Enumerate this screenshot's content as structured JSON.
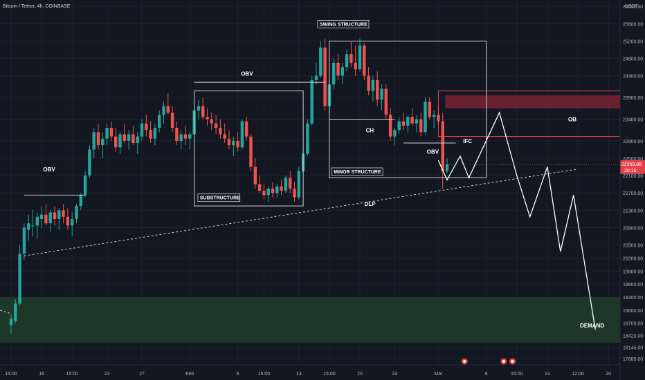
{
  "symbol_title": "Bitcoin / Tether, 4h, COINBASE",
  "currency": "USDT",
  "price_label": {
    "price": "22359.86",
    "countdown": "20:16",
    "bg": "#e8404a"
  },
  "colors": {
    "background": "#131722",
    "up": "#26a69a",
    "down": "#ef5350",
    "grid": "#1e222d",
    "text": "#b2b5be",
    "annotation": "#ffffff",
    "demand_zone": "#1f3b2a",
    "ob_zone": "#7a2232",
    "ob_border": "#e8404a"
  },
  "chart_data": {
    "type": "candlestick",
    "interval": "4h",
    "ylim": [
      17740,
      26050
    ],
    "y_ticks": [
      26000,
      25600,
      25200,
      24800,
      24400,
      23900,
      23400,
      22900,
      22500,
      22100,
      21700,
      21300,
      20900,
      20500,
      20200,
      19900,
      19600,
      19300,
      19000,
      18700,
      18420,
      18145,
      17885
    ],
    "y_tick_labels": [
      "26000.00",
      "25600.00",
      "25200.00",
      "24800.00",
      "24400.00",
      "23900.00",
      "23400.00",
      "22900.00",
      "22500.00",
      "22100.00",
      "21700.00",
      "21300.00",
      "20900.00",
      "20500.00",
      "20200.00",
      "19900.00",
      "19600.00",
      "19300.00",
      "19000.00",
      "18700.00",
      "18420.00",
      "18145.00",
      "17885.00"
    ],
    "x_ticks": [
      {
        "label": "15:00",
        "bar": 0
      },
      {
        "label": "16",
        "bar": 7
      },
      {
        "label": "15:00",
        "bar": 14
      },
      {
        "label": "23",
        "bar": 22
      },
      {
        "label": "27",
        "bar": 30
      },
      {
        "label": "Feb",
        "bar": 41
      },
      {
        "label": "6",
        "bar": 52
      },
      {
        "label": "15:00",
        "bar": 58
      },
      {
        "label": "13",
        "bar": 66
      },
      {
        "label": "15:00",
        "bar": 73
      },
      {
        "label": "20",
        "bar": 80
      },
      {
        "label": "24",
        "bar": 88
      },
      {
        "label": "Mar",
        "bar": 98
      },
      {
        "label": "6",
        "bar": 109
      },
      {
        "label": "15:00",
        "bar": 116
      },
      {
        "label": "13",
        "bar": 123
      },
      {
        "label": "12:00",
        "bar": 130
      },
      {
        "label": "20",
        "bar": 137
      }
    ],
    "candles": [
      [
        18650,
        18900,
        18450,
        18800
      ],
      [
        18750,
        19250,
        18700,
        19150
      ],
      [
        19150,
        20500,
        19100,
        20300
      ],
      [
        20300,
        21000,
        20150,
        20900
      ],
      [
        20850,
        21200,
        20600,
        21000
      ],
      [
        20950,
        21300,
        20700,
        20950
      ],
      [
        20950,
        21250,
        20650,
        21150
      ],
      [
        21100,
        21400,
        20900,
        21200
      ],
      [
        21200,
        21450,
        20950,
        21000
      ],
      [
        21000,
        21300,
        20800,
        21250
      ],
      [
        21250,
        21400,
        20950,
        21100
      ],
      [
        21100,
        21350,
        20850,
        21300
      ],
      [
        21300,
        21450,
        21000,
        21150
      ],
      [
        21150,
        21350,
        20850,
        20950
      ],
      [
        20950,
        21250,
        20700,
        21100
      ],
      [
        21100,
        21450,
        21000,
        21400
      ],
      [
        21400,
        21700,
        21300,
        21650
      ],
      [
        21650,
        22200,
        21600,
        22100
      ],
      [
        22100,
        22800,
        22050,
        22700
      ],
      [
        22700,
        23200,
        22500,
        23100
      ],
      [
        23100,
        23300,
        22700,
        22800
      ],
      [
        22800,
        23100,
        22500,
        22950
      ],
      [
        22950,
        23300,
        22800,
        23200
      ],
      [
        23200,
        23350,
        22900,
        23000
      ],
      [
        23000,
        23200,
        22650,
        22750
      ],
      [
        22750,
        23100,
        22600,
        23050
      ],
      [
        23050,
        23300,
        22850,
        22900
      ],
      [
        22900,
        23150,
        22700,
        23050
      ],
      [
        23050,
        23250,
        22800,
        22850
      ],
      [
        22850,
        23100,
        22600,
        23000
      ],
      [
        23000,
        23400,
        22900,
        23300
      ],
      [
        23300,
        23500,
        23000,
        23150
      ],
      [
        23150,
        23350,
        22850,
        22950
      ],
      [
        22950,
        23300,
        22800,
        23200
      ],
      [
        23200,
        23600,
        23100,
        23500
      ],
      [
        23500,
        23800,
        23300,
        23700
      ],
      [
        23700,
        24000,
        23500,
        23550
      ],
      [
        23550,
        23700,
        23100,
        23200
      ],
      [
        23200,
        23350,
        22800,
        22900
      ],
      [
        22900,
        23150,
        22700,
        23050
      ],
      [
        23050,
        23250,
        22800,
        22950
      ],
      [
        22950,
        23100,
        22700,
        23050
      ],
      [
        23050,
        23700,
        23000,
        23600
      ],
      [
        23600,
        23850,
        23400,
        23700
      ],
      [
        23700,
        23900,
        23400,
        23450
      ],
      [
        23450,
        23650,
        23250,
        23400
      ],
      [
        23400,
        23550,
        23150,
        23300
      ],
      [
        23300,
        23500,
        23050,
        23200
      ],
      [
        23200,
        23400,
        22950,
        23050
      ],
      [
        23050,
        23300,
        22850,
        22950
      ],
      [
        22950,
        23150,
        22700,
        22800
      ],
      [
        22800,
        23000,
        22550,
        22900
      ],
      [
        22900,
        23100,
        22650,
        22750
      ],
      [
        22750,
        23400,
        22700,
        23350
      ],
      [
        23350,
        23450,
        22900,
        23000
      ],
      [
        23000,
        23050,
        22200,
        22300
      ],
      [
        22300,
        22500,
        21800,
        21900
      ],
      [
        21900,
        22100,
        21700,
        21750
      ],
      [
        21750,
        21900,
        21550,
        21650
      ],
      [
        21650,
        21850,
        21500,
        21800
      ],
      [
        21800,
        21950,
        21600,
        21700
      ],
      [
        21700,
        21900,
        21600,
        21850
      ],
      [
        21850,
        22000,
        21650,
        21750
      ],
      [
        21750,
        22100,
        21700,
        22050
      ],
      [
        22050,
        22200,
        21700,
        21800
      ],
      [
        21800,
        21950,
        21500,
        21600
      ],
      [
        21600,
        22300,
        21550,
        22200
      ],
      [
        22200,
        22700,
        22150,
        22600
      ],
      [
        22600,
        23400,
        22550,
        23300
      ],
      [
        23300,
        24400,
        23250,
        24300
      ],
      [
        24300,
        24700,
        24200,
        24400
      ],
      [
        24400,
        25200,
        24350,
        25050
      ],
      [
        25050,
        25250,
        23600,
        23700
      ],
      [
        23700,
        24300,
        23500,
        24200
      ],
      [
        24200,
        24800,
        24100,
        24700
      ],
      [
        24700,
        24900,
        24300,
        24400
      ],
      [
        24400,
        24700,
        24200,
        24600
      ],
      [
        24600,
        25000,
        24500,
        24900
      ],
      [
        24900,
        25200,
        24600,
        24700
      ],
      [
        24700,
        25100,
        24400,
        24550
      ],
      [
        24550,
        25250,
        24500,
        25100
      ],
      [
        25100,
        25150,
        24300,
        24400
      ],
      [
        24400,
        24600,
        23950,
        24050
      ],
      [
        24050,
        24400,
        23800,
        24300
      ],
      [
        24300,
        24500,
        23700,
        23850
      ],
      [
        23850,
        24200,
        23600,
        24100
      ],
      [
        24100,
        24200,
        23400,
        23500
      ],
      [
        23500,
        23650,
        22900,
        23000
      ],
      [
        23000,
        23200,
        22800,
        23150
      ],
      [
        23150,
        23450,
        23050,
        23350
      ],
      [
        23350,
        23550,
        23150,
        23250
      ],
      [
        23250,
        23500,
        23100,
        23450
      ],
      [
        23450,
        23650,
        23250,
        23300
      ],
      [
        23300,
        23500,
        23100,
        23400
      ],
      [
        23400,
        23550,
        23000,
        23100
      ],
      [
        23100,
        23900,
        23050,
        23800
      ],
      [
        23800,
        23900,
        23400,
        23450
      ],
      [
        23450,
        23600,
        23200,
        23500
      ],
      [
        23500,
        23700,
        23250,
        23350
      ],
      [
        23350,
        23550,
        21800,
        22200
      ],
      [
        22200,
        22500,
        22150,
        22360
      ]
    ],
    "projection": [
      [
        98,
        22450
      ],
      [
        100,
        22000
      ],
      [
        103,
        22550
      ],
      [
        105,
        22050
      ],
      [
        112,
        23550
      ],
      [
        116,
        22100
      ],
      [
        119,
        21150
      ],
      [
        123,
        22300
      ],
      [
        126,
        20350
      ],
      [
        129,
        21650
      ],
      [
        134,
        18550
      ]
    ],
    "zones": [
      {
        "name": "DEMAND",
        "label": "DEMAND",
        "y_from": 18250,
        "y_to": 19300,
        "bar_from": -3,
        "bar_to": 139
      },
      {
        "name": "OB",
        "label": "OB",
        "y_from": 23650,
        "y_to": 23950,
        "bar_from": 98,
        "bar_to": 139
      },
      {
        "name": "OB-outer",
        "label": "",
        "y_from": 23000,
        "y_to": 24050,
        "bar_from": 98,
        "bar_to": 139
      }
    ],
    "annotations": {
      "obv_left": "OBV",
      "substructure": "SUBSTRUCTURE",
      "obv_mid": "OBV",
      "swing_structure": "SWING STRUCTURE",
      "ch": "CH",
      "obv_right": "OBV",
      "ifc": "IFC",
      "minor_structure": "MINOR STRUCTURE",
      "dlp": "DLP",
      "ob": "OB",
      "demand": "DEMAND"
    }
  }
}
